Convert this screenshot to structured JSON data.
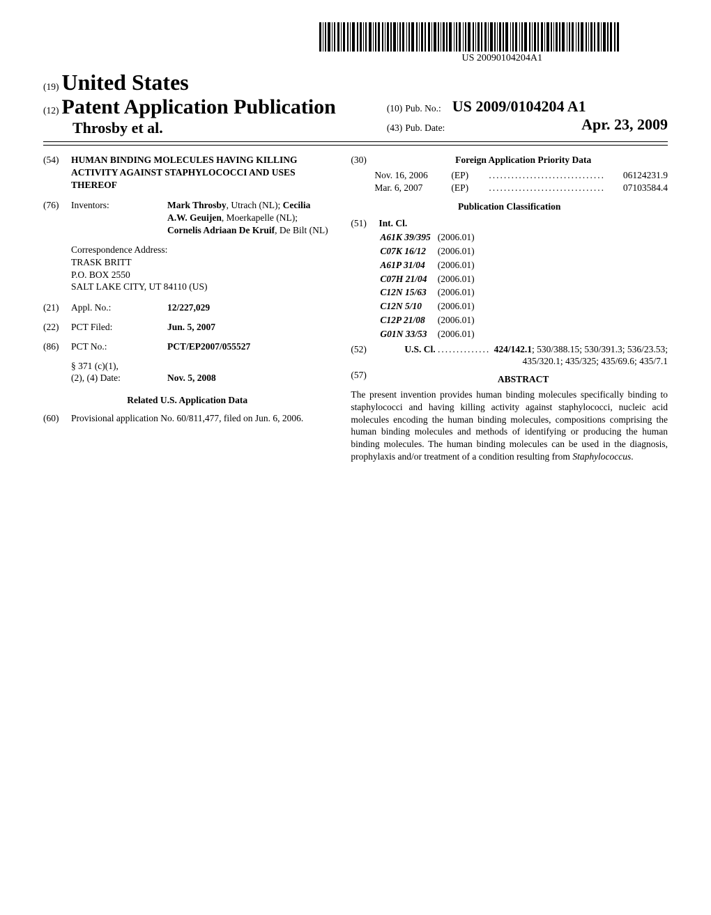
{
  "barcode_label": "US 20090104204A1",
  "header": {
    "kicker_code": "(19)",
    "country": "United States",
    "doc_code": "(12)",
    "doc_title": "Patent Application Publication",
    "authors": "Throsby et al.",
    "pubno_code": "(10)",
    "pubno_label": "Pub. No.:",
    "pubno": "US 2009/0104204 A1",
    "pubdate_code": "(43)",
    "pubdate_label": "Pub. Date:",
    "pubdate": "Apr. 23, 2009"
  },
  "left": {
    "title_code": "(54)",
    "title": "HUMAN BINDING MOLECULES HAVING KILLING ACTIVITY AGAINST STAPHYLOCOCCI AND USES THEREOF",
    "inventors_code": "(76)",
    "inventors_label": "Inventors:",
    "inventors_html": "Mark Throsby, Utrach (NL); Cecilia A.W. Geuijen, Moerkapelle (NL); Cornelis Adriaan De Kruif, De Bilt (NL)",
    "inv1_name": "Mark Throsby",
    "inv1_loc": ", Utrach (NL); ",
    "inv2_name": "Cecilia A.W. Geuijen",
    "inv2_loc": ", Moerkapelle (NL); ",
    "inv3_name": "Cornelis Adriaan De Kruif",
    "inv3_loc": ", De Bilt (NL)",
    "corr_label": "Correspondence Address:",
    "corr_line1": "TRASK BRITT",
    "corr_line2": "P.O. BOX 2550",
    "corr_line3": "SALT LAKE CITY, UT 84110 (US)",
    "applno_code": "(21)",
    "applno_label": "Appl. No.:",
    "applno": "12/227,029",
    "pct_filed_code": "(22)",
    "pct_filed_label": "PCT Filed:",
    "pct_filed": "Jun. 5, 2007",
    "pctno_code": "(86)",
    "pctno_label": "PCT No.:",
    "pctno": "PCT/EP2007/055527",
    "s371_label": "§ 371 (c)(1),",
    "s371_label2": "(2), (4) Date:",
    "s371_date": "Nov. 5, 2008",
    "related_head": "Related U.S. Application Data",
    "prov_code": "(60)",
    "prov_text": "Provisional application No. 60/811,477, filed on Jun. 6, 2006."
  },
  "right": {
    "foreign_code": "(30)",
    "foreign_head": "Foreign Application Priority Data",
    "foreign_rows": [
      {
        "date": "Nov. 16, 2006",
        "cc": "(EP)",
        "num": "06124231.9"
      },
      {
        "date": "Mar. 6, 2007",
        "cc": "(EP)",
        "num": "07103584.4"
      }
    ],
    "pubclass_head": "Publication Classification",
    "intcl_code": "(51)",
    "intcl_label": "Int. Cl.",
    "intcl": [
      {
        "sym": "A61K 39/395",
        "ver": "(2006.01)"
      },
      {
        "sym": "C07K 16/12",
        "ver": "(2006.01)"
      },
      {
        "sym": "A61P 31/04",
        "ver": "(2006.01)"
      },
      {
        "sym": "C07H 21/04",
        "ver": "(2006.01)"
      },
      {
        "sym": "C12N 15/63",
        "ver": "(2006.01)"
      },
      {
        "sym": "C12N 5/10",
        "ver": "(2006.01)"
      },
      {
        "sym": "C12P 21/08",
        "ver": "(2006.01)"
      },
      {
        "sym": "G01N 33/53",
        "ver": "(2006.01)"
      }
    ],
    "uscl_code": "(52)",
    "uscl_label": "U.S. Cl.",
    "uscl_lead_bold": "424/142.1",
    "uscl_rest": "; 530/388.15; 530/391.3; 536/23.53; 435/320.1; 435/325; 435/69.6; 435/7.1",
    "abstract_code": "(57)",
    "abstract_head": "ABSTRACT",
    "abstract_body_1": "The present invention provides human binding molecules specifically binding to staphylococci and having killing activity against staphylococci, nucleic acid molecules encoding the human binding molecules, compositions comprising the human binding molecules and methods of identifying or producing the human binding molecules. The human binding molecules can be used in the diagnosis, prophylaxis and/or treatment of a condition resulting from ",
    "abstract_body_italic": "Staphylococcus",
    "abstract_body_2": "."
  },
  "dots_str": "..............................."
}
